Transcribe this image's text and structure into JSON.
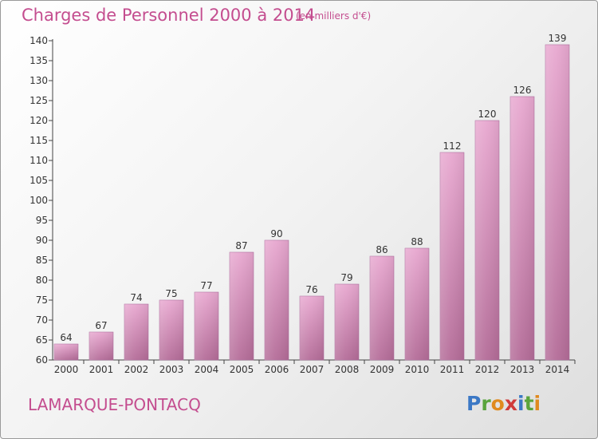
{
  "header": {
    "title": "Charges de Personnel 2000 à 2014",
    "subtitle": "(en milliers d'€)"
  },
  "footer": {
    "commune": "LAMARQUE-PONTACQ",
    "logo_text": "Proxiti",
    "logo_letters": [
      {
        "ch": "P",
        "color": "#3b78c5"
      },
      {
        "ch": "r",
        "color": "#5aa43c"
      },
      {
        "ch": "o",
        "color": "#e08a1e"
      },
      {
        "ch": "x",
        "color": "#d03a3a"
      },
      {
        "ch": "i",
        "color": "#3b78c5"
      },
      {
        "ch": "t",
        "color": "#5aa43c"
      },
      {
        "ch": "i",
        "color": "#e08a1e"
      }
    ]
  },
  "colors": {
    "bar_top": "#e8a8d0",
    "bar_bottom": "#b46c98",
    "accent": "#c44d8f",
    "axis": "#444444",
    "grid": "#d0d0d0"
  },
  "chart_data": {
    "type": "bar",
    "title": "Charges de Personnel 2000 à 2014",
    "subtitle": "(en milliers d'€)",
    "categories": [
      "2000",
      "2001",
      "2002",
      "2003",
      "2004",
      "2005",
      "2006",
      "2007",
      "2008",
      "2009",
      "2010",
      "2011",
      "2012",
      "2013",
      "2014"
    ],
    "values": [
      64,
      67,
      74,
      75,
      77,
      87,
      90,
      76,
      79,
      86,
      88,
      112,
      120,
      126,
      139
    ],
    "ylim": [
      60,
      140
    ],
    "yticks": [
      60,
      65,
      70,
      75,
      80,
      85,
      90,
      95,
      100,
      105,
      110,
      115,
      120,
      125,
      130,
      135,
      140
    ],
    "grid": false,
    "data_labels": true
  }
}
